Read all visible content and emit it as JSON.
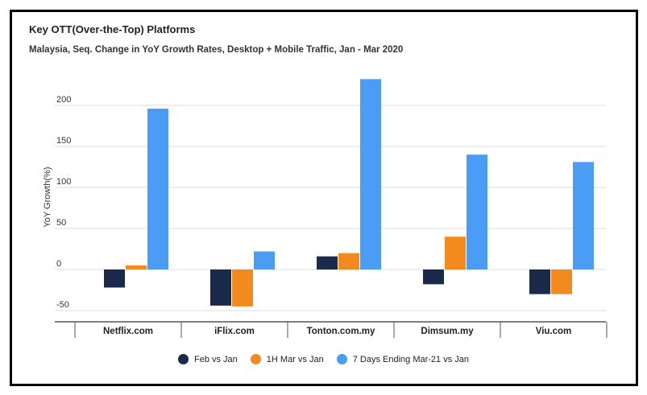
{
  "chart_data": {
    "type": "bar",
    "title": "Key OTT(Over-the-Top) Platforms",
    "subtitle": "Malaysia, Seq. Change in YoY Growth Rates, Desktop + Mobile Traffic, Jan - Mar 2020",
    "ylabel": "YoY Growth(%)",
    "xlabel": "",
    "ylim": [
      -50,
      250
    ],
    "yticks": [
      -50,
      0,
      50,
      100,
      150,
      200
    ],
    "grid": true,
    "legend_position": "bottom",
    "categories": [
      "Netflix.com",
      "iFlix.com",
      "Tonton.com.my",
      "Dimsum.my",
      "Viu.com"
    ],
    "series": [
      {
        "name": "Feb vs Jan",
        "color": "#1b2a4a",
        "values": [
          -22,
          -44,
          16,
          -18,
          -30
        ]
      },
      {
        "name": "1H Mar vs Jan",
        "color": "#f28a1e",
        "values": [
          5,
          -45,
          20,
          40,
          -30
        ]
      },
      {
        "name": "7 Days Ending Mar-21 vs Jan",
        "color": "#4a9cf5",
        "values": [
          196,
          22,
          232,
          140,
          131
        ]
      }
    ]
  }
}
